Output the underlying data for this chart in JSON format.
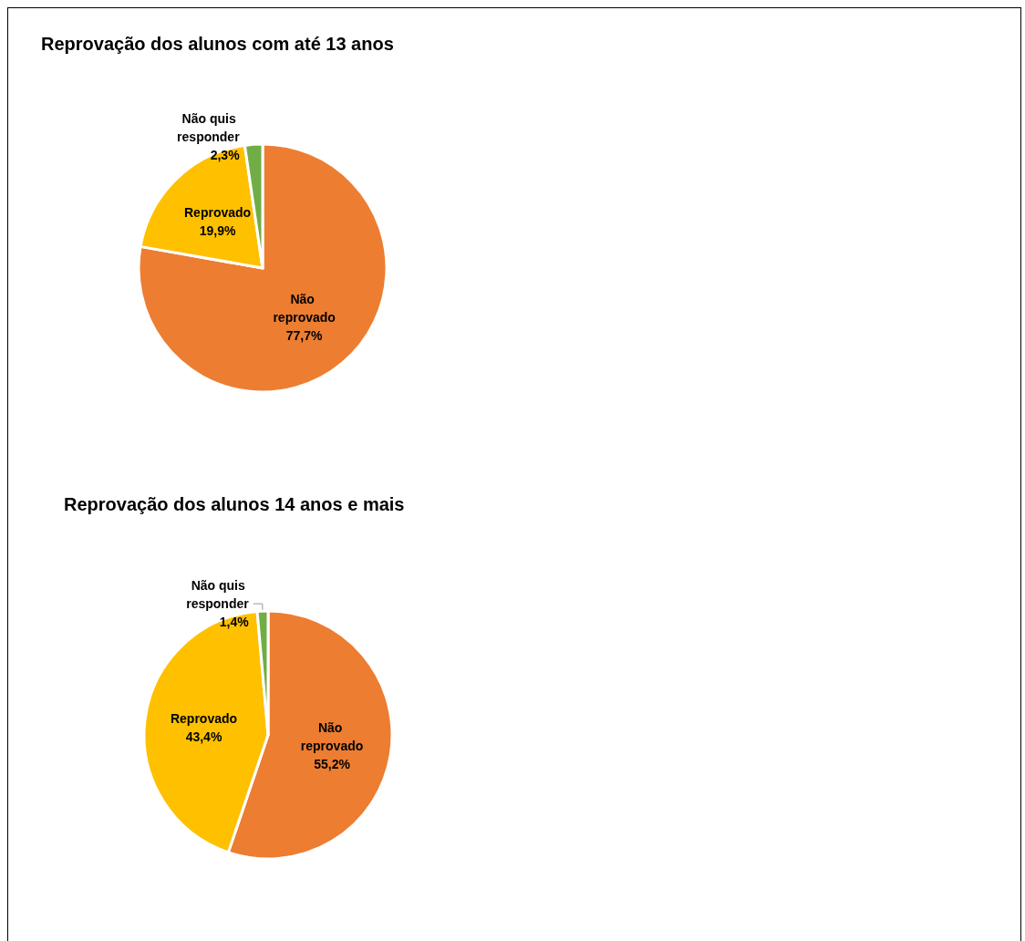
{
  "chart_data": [
    {
      "type": "pie",
      "title": "Reprovação dos alunos com até 13 anos",
      "categories": [
        "Não reprovado",
        "Reprovado",
        "Não quis responder"
      ],
      "values": [
        77.7,
        19.9,
        2.3
      ],
      "colors": [
        "#ed7d31",
        "#ffc000",
        "#70ad47"
      ],
      "value_labels": [
        "77,7%",
        "19,9%",
        "2,3%"
      ],
      "legend": false
    },
    {
      "type": "pie",
      "title": "Reprovação dos alunos 14 anos e mais",
      "categories": [
        "Não reprovado",
        "Reprovado",
        "Não quis responder"
      ],
      "values": [
        55.2,
        43.4,
        1.4
      ],
      "colors": [
        "#ed7d31",
        "#ffc000",
        "#70ad47"
      ],
      "value_labels": [
        "55,2%",
        "43,4%",
        "1,4%"
      ],
      "legend": false
    }
  ]
}
